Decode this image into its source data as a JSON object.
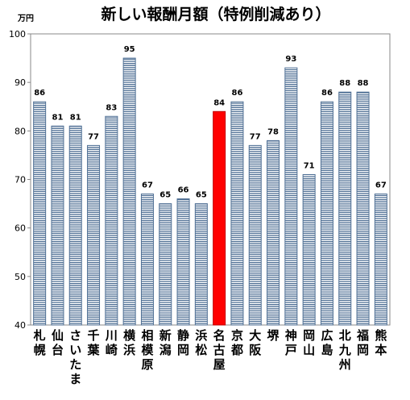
{
  "chart_data": {
    "type": "bar",
    "title": "新しい報酬月額（特例削減あり）",
    "ylabel": "万円",
    "xlabel": "",
    "ylim": [
      40,
      100
    ],
    "yticks": [
      40,
      50,
      60,
      70,
      80,
      90,
      100
    ],
    "grid": false,
    "categories": [
      "札幌",
      "仙台",
      "さいたま",
      "千葉",
      "川崎",
      "横浜",
      "相模原",
      "新潟",
      "静岡",
      "浜松",
      "名古屋",
      "京都",
      "大阪",
      "堺",
      "神戸",
      "岡山",
      "広島",
      "北九州",
      "福岡",
      "熊本"
    ],
    "values": [
      86,
      81,
      81,
      77,
      83,
      95,
      67,
      65,
      66,
      65,
      84,
      86,
      77,
      78,
      93,
      71,
      86,
      88,
      88,
      67
    ],
    "data_labels": [
      "86",
      "81",
      "81",
      "77",
      "83",
      "95",
      "67",
      "65",
      "66",
      "65",
      "84",
      "86",
      "77",
      "78",
      "93",
      "71",
      "86",
      "88",
      "88",
      "67"
    ],
    "highlight_index": 10,
    "colors": {
      "bar_fill": "#ffffff",
      "bar_stripe": "#4f6f94",
      "bar_border": "#4f6f94",
      "highlight_fill": "#ff0000",
      "highlight_border": "#c00000",
      "axis": "#888888"
    }
  }
}
